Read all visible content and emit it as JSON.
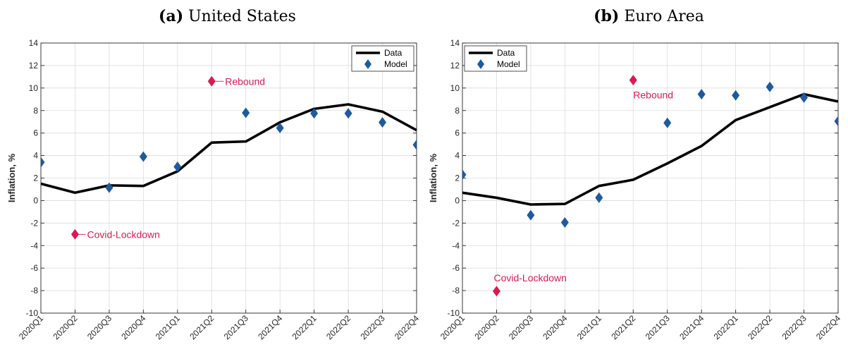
{
  "chart_data": [
    {
      "type": "line",
      "panel_label": "(a)",
      "title": "United States",
      "xlabel": "",
      "ylabel": "Inflation, %",
      "categories": [
        "2020Q1",
        "2020Q2",
        "2020Q3",
        "2020Q4",
        "2021Q1",
        "2021Q2",
        "2021Q3",
        "2021Q4",
        "2022Q1",
        "2022Q2",
        "2022Q3",
        "2022Q4"
      ],
      "ylim": [
        -10,
        14
      ],
      "yticks": [
        "14",
        "12",
        "10",
        "8",
        "6",
        "4",
        "2",
        "0",
        "-2",
        "-4",
        "-6",
        "-8",
        "-10"
      ],
      "grid": true,
      "legend_position": "top-right",
      "series": [
        {
          "name": "Data",
          "kind": "line",
          "color": "#000000",
          "values": [
            1.5,
            0.7,
            1.35,
            1.3,
            2.6,
            5.15,
            5.25,
            6.95,
            8.15,
            8.55,
            7.9,
            6.25
          ]
        },
        {
          "name": "Model",
          "kind": "scatter",
          "color": "#1f5a9e",
          "values": [
            3.4,
            null,
            1.15,
            3.9,
            3.0,
            null,
            7.8,
            6.45,
            7.75,
            7.75,
            6.95,
            4.95
          ]
        }
      ],
      "annotations": [
        {
          "text": "Covid-Lockdown",
          "x": "2020Q2",
          "y": -3.0,
          "color": "#d81b4f"
        },
        {
          "text": "Rebound",
          "x": "2021Q2",
          "y": 10.6,
          "color": "#d81b4f"
        }
      ]
    },
    {
      "type": "line",
      "panel_label": "(b)",
      "title": "Euro Area",
      "xlabel": "",
      "ylabel": "Inflation, %",
      "categories": [
        "2020Q1",
        "2020Q2",
        "2020Q3",
        "2020Q4",
        "2021Q1",
        "2021Q2",
        "2021Q3",
        "2021Q4",
        "2022Q1",
        "2022Q2",
        "2022Q3",
        "2022Q4"
      ],
      "ylim": [
        -10,
        14
      ],
      "yticks": [
        "14",
        "12",
        "10",
        "8",
        "6",
        "4",
        "2",
        "0",
        "-2",
        "-4",
        "-6",
        "-8",
        "-10"
      ],
      "grid": true,
      "legend_position": "top-left",
      "series": [
        {
          "name": "Data",
          "kind": "line",
          "color": "#000000",
          "values": [
            0.7,
            0.25,
            -0.35,
            -0.3,
            1.3,
            1.85,
            3.3,
            4.85,
            7.15,
            8.3,
            9.45,
            8.8
          ]
        },
        {
          "name": "Model",
          "kind": "scatter",
          "color": "#1f5a9e",
          "values": [
            2.3,
            null,
            -1.3,
            -1.95,
            0.25,
            null,
            6.9,
            9.45,
            9.35,
            10.1,
            9.15,
            7.05
          ]
        }
      ],
      "annotations": [
        {
          "text": "Covid-Lockdown",
          "x": "2020Q2",
          "y": -8.05,
          "color": "#d81b4f"
        },
        {
          "text": "Rebound",
          "x": "2021Q2",
          "y": 10.7,
          "color": "#d81b4f"
        }
      ]
    }
  ]
}
